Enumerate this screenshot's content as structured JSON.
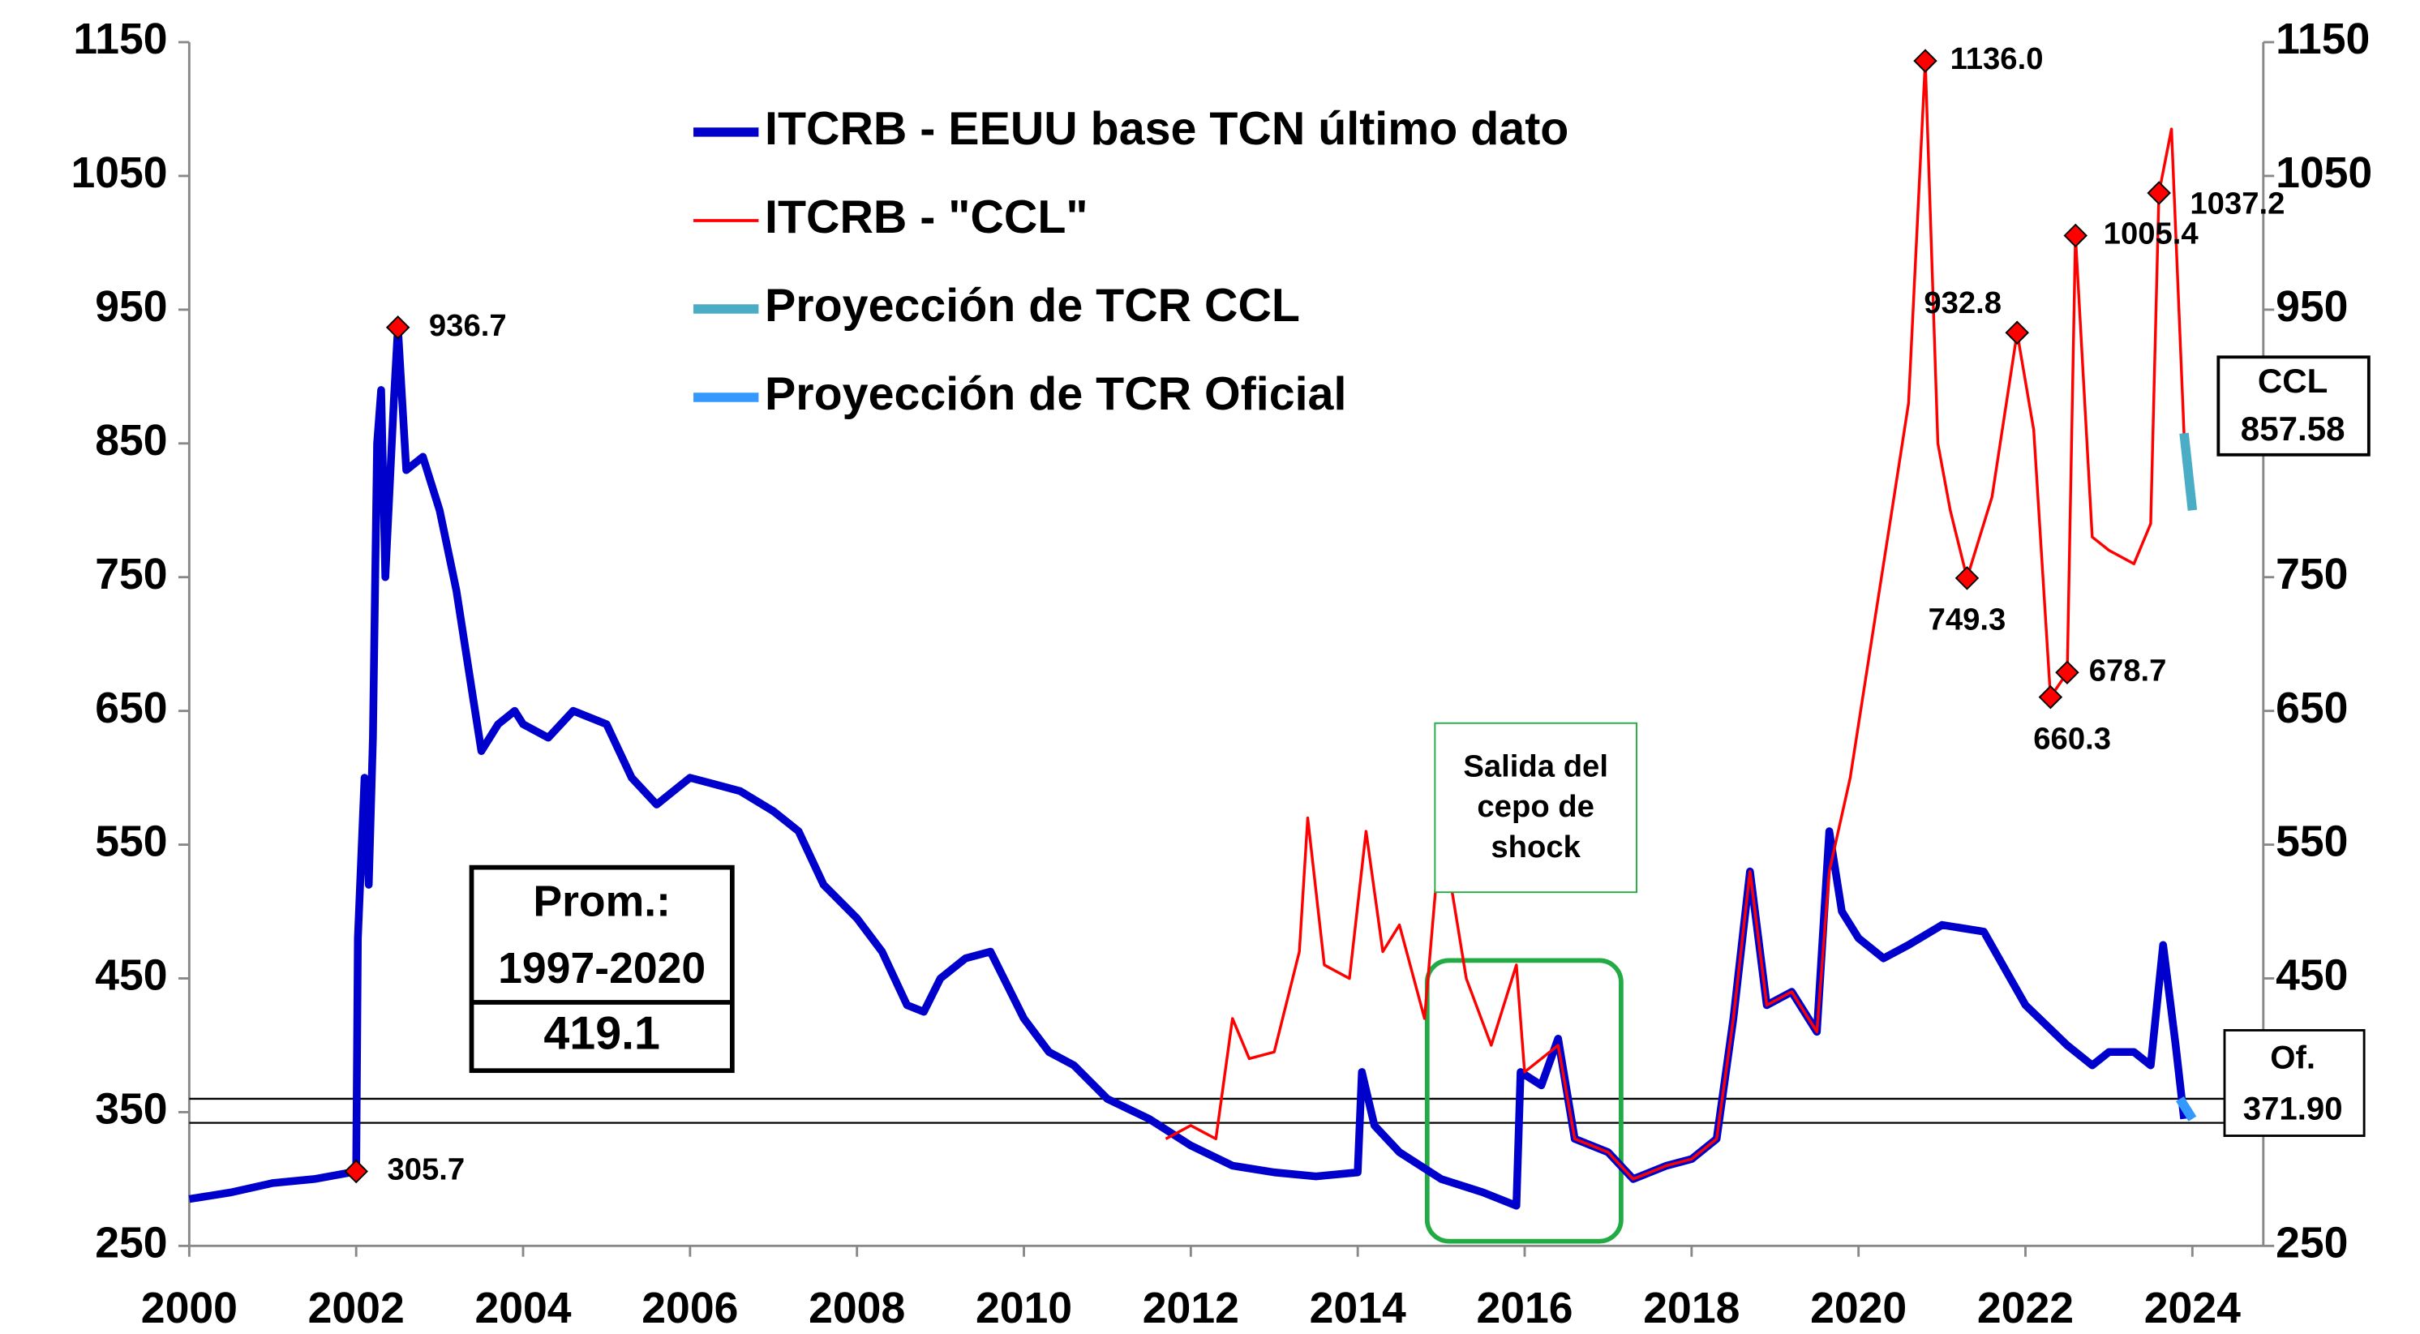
{
  "chart_data": {
    "type": "line",
    "xlim": [
      2000,
      2024.85
    ],
    "xticks": [
      2000,
      2002,
      2004,
      2006,
      2008,
      2010,
      2012,
      2014,
      2016,
      2018,
      2020,
      2022,
      2024
    ],
    "ylim": [
      250,
      1150
    ],
    "yticks": [
      250,
      350,
      450,
      550,
      650,
      750,
      850,
      950,
      1050,
      1150
    ],
    "y2lim": [
      250,
      1150
    ],
    "y2ticks": [
      250,
      350,
      450,
      550,
      650,
      750,
      850,
      950,
      1050,
      1150
    ],
    "hlines": [
      360,
      342
    ],
    "series": [
      {
        "name": "ITCRB - EEUU base TCN último dato",
        "color": "#0000cc",
        "x": [
          2000,
          2000.5,
          2001,
          2001.5,
          2002.0,
          2002.02,
          2002.1,
          2002.15,
          2002.2,
          2002.25,
          2002.3,
          2002.35,
          2002.45,
          2002.5,
          2002.6,
          2002.8,
          2003,
          2003.2,
          2003.4,
          2003.5,
          2003.7,
          2003.9,
          2004,
          2004.3,
          2004.6,
          2005,
          2005.3,
          2005.6,
          2006,
          2006.3,
          2006.6,
          2007,
          2007.3,
          2007.6,
          2008,
          2008.3,
          2008.6,
          2008.8,
          2009,
          2009.3,
          2009.6,
          2010,
          2010.3,
          2010.6,
          2011,
          2011.5,
          2012,
          2012.5,
          2013,
          2013.5,
          2014,
          2014.05,
          2014.2,
          2014.5,
          2015,
          2015.5,
          2015.9,
          2015.95,
          2016.2,
          2016.4,
          2016.6,
          2017,
          2017.3,
          2017.7,
          2018,
          2018.3,
          2018.5,
          2018.7,
          2018.9,
          2019.2,
          2019.5,
          2019.65,
          2019.8,
          2020,
          2020.3,
          2020.6,
          2021,
          2021.5,
          2022,
          2022.5,
          2022.8,
          2023,
          2023.3,
          2023.5,
          2023.65,
          2023.8,
          2023.9
        ],
        "values": [
          285,
          290,
          297,
          300,
          305.7,
          480,
          600,
          520,
          630,
          850,
          890,
          750,
          880,
          936.7,
          830,
          840,
          800,
          740,
          660,
          620,
          640,
          650,
          640,
          630,
          650,
          640,
          600,
          580,
          600,
          595,
          590,
          575,
          560,
          520,
          495,
          470,
          430,
          425,
          450,
          465,
          470,
          420,
          395,
          385,
          360,
          345,
          325,
          310,
          305,
          302,
          305,
          380,
          340,
          320,
          300,
          290,
          280,
          380,
          370,
          405,
          330,
          320,
          300,
          310,
          315,
          330,
          420,
          530,
          430,
          440,
          410,
          560,
          500,
          480,
          465,
          475,
          490,
          485,
          430,
          400,
          385,
          395,
          395,
          385,
          475,
          400,
          345
        ]
      },
      {
        "name": "ITCRB - \"CCL\"",
        "color": "#ff0000",
        "x": [
          2011.7,
          2012,
          2012.3,
          2012.5,
          2012.7,
          2013,
          2013.3,
          2013.4,
          2013.6,
          2013.9,
          2014.1,
          2014.3,
          2014.5,
          2014.8,
          2015,
          2015.3,
          2015.6,
          2015.9,
          2016.0,
          2016.4,
          2016.6,
          2017,
          2017.3,
          2017.7,
          2018,
          2018.3,
          2018.5,
          2018.7,
          2018.9,
          2019.2,
          2019.5,
          2019.65,
          2019.9,
          2020.2,
          2020.4,
          2020.6,
          2020.8,
          2020.95,
          2021.1,
          2021.3,
          2021.6,
          2021.9,
          2022.1,
          2022.3,
          2022.5,
          2022.6,
          2022.8,
          2023,
          2023.3,
          2023.5,
          2023.6,
          2023.75,
          2023.9
        ],
        "values": [
          330,
          340,
          330,
          420,
          390,
          395,
          470,
          570,
          460,
          450,
          560,
          470,
          490,
          420,
          565,
          450,
          400,
          460,
          380,
          400,
          330,
          320,
          300,
          310,
          315,
          330,
          420,
          530,
          430,
          440,
          410,
          530,
          600,
          720,
          800,
          880,
          1136.0,
          850,
          800,
          749.3,
          810,
          932.8,
          860,
          660.3,
          678.7,
          1005.4,
          780,
          770,
          760,
          790,
          1037.2,
          1085,
          857
        ]
      },
      {
        "name": "Proyección de TCR CCL",
        "color": "#4bacc6",
        "x": [
          2023.9,
          2024.0
        ],
        "values": [
          857.58,
          800
        ]
      },
      {
        "name": "Proyección de TCR Oficial",
        "color": "#3399ff",
        "x": [
          2023.85,
          2024.0
        ],
        "values": [
          360,
          345
        ]
      }
    ],
    "point_labels": [
      {
        "x": 2002.0,
        "value": 305.7,
        "label": "305.7"
      },
      {
        "x": 2002.5,
        "value": 936.7,
        "label": "936.7"
      },
      {
        "x": 2020.8,
        "value": 1136.0,
        "label": "1136.0"
      },
      {
        "x": 2021.9,
        "value": 932.8,
        "label": "932.8"
      },
      {
        "x": 2021.3,
        "value": 749.3,
        "label": "749.3"
      },
      {
        "x": 2022.6,
        "value": 1005.4,
        "label": "1005.4"
      },
      {
        "x": 2022.5,
        "value": 678.7,
        "label": "678.7"
      },
      {
        "x": 2022.3,
        "value": 660.3,
        "label": "660.3"
      },
      {
        "x": 2023.6,
        "value": 1037.2,
        "label": "1037.2"
      }
    ],
    "boxes": {
      "average": [
        "Prom.:",
        "1997-2020",
        "419.1"
      ],
      "ccl": [
        "CCL",
        "857.58"
      ],
      "official": [
        "Of.",
        "371.90"
      ],
      "note": [
        "Salida del",
        "cepo de",
        "shock"
      ]
    }
  }
}
